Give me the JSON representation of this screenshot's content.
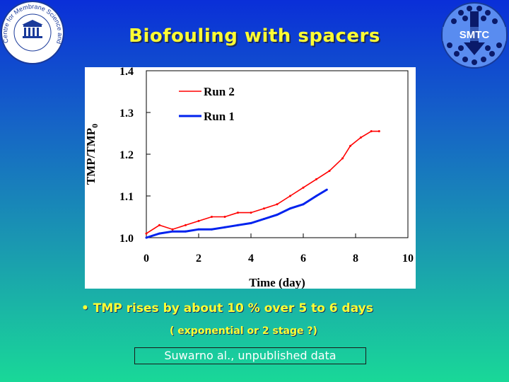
{
  "slide": {
    "title": "Biofouling with spacers",
    "bullet": "• TMP rises by about 10 % over 5 to 6 days",
    "subnote": "( exponential or 2 stage ?)",
    "credit": "Suwarno al., unpublished data"
  },
  "logos": {
    "left_text": "Centre for Membrane Science and Technology",
    "right_text": "SMTC"
  },
  "chart_data": {
    "type": "line",
    "title": "",
    "xlabel": "Time (day)",
    "ylabel": "TMP/TMP0",
    "xlim": [
      0,
      10
    ],
    "ylim": [
      1.0,
      1.4
    ],
    "xticks": [
      "0",
      "2",
      "4",
      "6",
      "8",
      "10"
    ],
    "yticks": [
      "1.0",
      "1.1",
      "1.2",
      "1.3",
      "1.4"
    ],
    "grid": false,
    "legend_position": "top-left",
    "series": [
      {
        "name": "Run 2",
        "color": "#ff0000",
        "x": [
          0.0,
          0.5,
          1.0,
          1.5,
          2.0,
          2.5,
          3.0,
          3.5,
          4.0,
          4.5,
          5.0,
          5.5,
          6.0,
          6.5,
          7.0,
          7.5,
          7.8,
          8.2,
          8.6,
          8.9
        ],
        "y": [
          1.01,
          1.03,
          1.02,
          1.03,
          1.04,
          1.05,
          1.05,
          1.06,
          1.06,
          1.07,
          1.08,
          1.1,
          1.12,
          1.14,
          1.16,
          1.19,
          1.22,
          1.24,
          1.255,
          1.255
        ]
      },
      {
        "name": "Run 1",
        "color": "#0022ee",
        "x": [
          0.0,
          0.5,
          1.0,
          1.5,
          2.0,
          2.5,
          3.0,
          3.5,
          4.0,
          4.5,
          5.0,
          5.5,
          6.0,
          6.5,
          6.9
        ],
        "y": [
          1.0,
          1.01,
          1.015,
          1.015,
          1.02,
          1.02,
          1.025,
          1.03,
          1.035,
          1.045,
          1.055,
          1.07,
          1.08,
          1.1,
          1.115
        ]
      }
    ]
  }
}
